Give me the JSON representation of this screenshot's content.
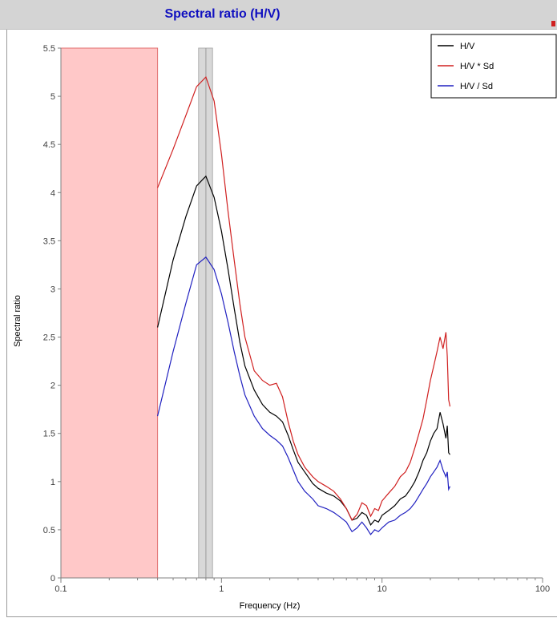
{
  "window": {
    "title": "Spectral ratio (H/V)"
  },
  "chart_data": {
    "type": "line",
    "title": "Spectral ratio (H/V)",
    "xlabel": "Frequency (Hz)",
    "ylabel": "Spectral ratio",
    "xscale": "log",
    "xlim": [
      0.1,
      100
    ],
    "ylim": [
      0,
      5.5
    ],
    "x_ticks": [
      "0.1",
      "1",
      "10",
      "100"
    ],
    "y_ticks": [
      "0",
      "0.5",
      "1",
      "1.5",
      "2",
      "2.5",
      "3",
      "3.5",
      "4",
      "4.5",
      "5",
      "5.5"
    ],
    "legend_position": "top-right",
    "colors": {
      "hv": "#000000",
      "hv_x_sd": "#d02020",
      "hv_div_sd": "#2020c0",
      "excluded_band": "#ffc8c8",
      "peak_band": "#d8d8d8"
    },
    "shaded_regions": [
      {
        "kind": "excluded-frequency-range",
        "x": [
          0.1,
          0.4
        ]
      },
      {
        "kind": "peak-frequency-range",
        "x": [
          0.72,
          0.88
        ]
      }
    ],
    "peak_line_x": 0.8,
    "series": [
      {
        "name": "H/V",
        "color": "#000000",
        "points": [
          [
            0.4,
            2.6
          ],
          [
            0.5,
            3.3
          ],
          [
            0.6,
            3.75
          ],
          [
            0.7,
            4.07
          ],
          [
            0.8,
            4.17
          ],
          [
            0.9,
            3.95
          ],
          [
            1.0,
            3.6
          ],
          [
            1.1,
            3.2
          ],
          [
            1.2,
            2.8
          ],
          [
            1.3,
            2.45
          ],
          [
            1.4,
            2.2
          ],
          [
            1.6,
            1.95
          ],
          [
            1.8,
            1.8
          ],
          [
            2.0,
            1.72
          ],
          [
            2.2,
            1.68
          ],
          [
            2.4,
            1.62
          ],
          [
            2.6,
            1.48
          ],
          [
            2.8,
            1.33
          ],
          [
            3.0,
            1.2
          ],
          [
            3.3,
            1.1
          ],
          [
            3.7,
            0.98
          ],
          [
            4.0,
            0.93
          ],
          [
            4.5,
            0.88
          ],
          [
            5.0,
            0.85
          ],
          [
            5.5,
            0.8
          ],
          [
            6.0,
            0.72
          ],
          [
            6.5,
            0.6
          ],
          [
            7.0,
            0.62
          ],
          [
            7.5,
            0.68
          ],
          [
            8.0,
            0.65
          ],
          [
            8.5,
            0.55
          ],
          [
            9.0,
            0.6
          ],
          [
            9.5,
            0.58
          ],
          [
            10.0,
            0.65
          ],
          [
            11.0,
            0.7
          ],
          [
            12.0,
            0.75
          ],
          [
            13.0,
            0.82
          ],
          [
            14.0,
            0.85
          ],
          [
            15.0,
            0.92
          ],
          [
            16.0,
            1.0
          ],
          [
            17.0,
            1.1
          ],
          [
            18.0,
            1.22
          ],
          [
            19.0,
            1.3
          ],
          [
            20.0,
            1.42
          ],
          [
            21.0,
            1.5
          ],
          [
            22.0,
            1.55
          ],
          [
            23.0,
            1.72
          ],
          [
            24.0,
            1.6
          ],
          [
            25.0,
            1.45
          ],
          [
            25.5,
            1.58
          ],
          [
            26.0,
            1.3
          ],
          [
            26.5,
            1.28
          ]
        ]
      },
      {
        "name": "H/V * Sd",
        "color": "#d02020",
        "points": [
          [
            0.4,
            4.05
          ],
          [
            0.5,
            4.45
          ],
          [
            0.6,
            4.8
          ],
          [
            0.7,
            5.1
          ],
          [
            0.8,
            5.2
          ],
          [
            0.9,
            4.95
          ],
          [
            1.0,
            4.4
          ],
          [
            1.1,
            3.8
          ],
          [
            1.2,
            3.3
          ],
          [
            1.3,
            2.85
          ],
          [
            1.4,
            2.5
          ],
          [
            1.6,
            2.15
          ],
          [
            1.8,
            2.05
          ],
          [
            2.0,
            2.0
          ],
          [
            2.2,
            2.02
          ],
          [
            2.4,
            1.88
          ],
          [
            2.6,
            1.62
          ],
          [
            2.8,
            1.42
          ],
          [
            3.0,
            1.28
          ],
          [
            3.3,
            1.15
          ],
          [
            3.7,
            1.05
          ],
          [
            4.0,
            1.0
          ],
          [
            4.5,
            0.95
          ],
          [
            5.0,
            0.9
          ],
          [
            5.5,
            0.82
          ],
          [
            6.0,
            0.72
          ],
          [
            6.5,
            0.6
          ],
          [
            7.0,
            0.66
          ],
          [
            7.5,
            0.78
          ],
          [
            8.0,
            0.75
          ],
          [
            8.5,
            0.64
          ],
          [
            9.0,
            0.72
          ],
          [
            9.5,
            0.7
          ],
          [
            10.0,
            0.8
          ],
          [
            11.0,
            0.88
          ],
          [
            12.0,
            0.95
          ],
          [
            13.0,
            1.05
          ],
          [
            14.0,
            1.1
          ],
          [
            15.0,
            1.2
          ],
          [
            16.0,
            1.35
          ],
          [
            17.0,
            1.5
          ],
          [
            18.0,
            1.65
          ],
          [
            19.0,
            1.85
          ],
          [
            20.0,
            2.05
          ],
          [
            21.0,
            2.2
          ],
          [
            22.0,
            2.35
          ],
          [
            23.0,
            2.5
          ],
          [
            24.0,
            2.38
          ],
          [
            25.0,
            2.55
          ],
          [
            25.5,
            2.3
          ],
          [
            26.0,
            1.85
          ],
          [
            26.5,
            1.78
          ]
        ]
      },
      {
        "name": "H/V / Sd",
        "color": "#2020c0",
        "points": [
          [
            0.4,
            1.68
          ],
          [
            0.5,
            2.35
          ],
          [
            0.6,
            2.85
          ],
          [
            0.7,
            3.25
          ],
          [
            0.8,
            3.33
          ],
          [
            0.9,
            3.2
          ],
          [
            1.0,
            2.95
          ],
          [
            1.1,
            2.65
          ],
          [
            1.2,
            2.35
          ],
          [
            1.3,
            2.1
          ],
          [
            1.4,
            1.9
          ],
          [
            1.6,
            1.68
          ],
          [
            1.8,
            1.55
          ],
          [
            2.0,
            1.48
          ],
          [
            2.2,
            1.43
          ],
          [
            2.4,
            1.37
          ],
          [
            2.6,
            1.25
          ],
          [
            2.8,
            1.12
          ],
          [
            3.0,
            1.0
          ],
          [
            3.3,
            0.9
          ],
          [
            3.7,
            0.82
          ],
          [
            4.0,
            0.75
          ],
          [
            4.5,
            0.72
          ],
          [
            5.0,
            0.68
          ],
          [
            5.5,
            0.63
          ],
          [
            6.0,
            0.58
          ],
          [
            6.5,
            0.48
          ],
          [
            7.0,
            0.52
          ],
          [
            7.5,
            0.58
          ],
          [
            8.0,
            0.52
          ],
          [
            8.5,
            0.45
          ],
          [
            9.0,
            0.5
          ],
          [
            9.5,
            0.48
          ],
          [
            10.0,
            0.52
          ],
          [
            11.0,
            0.58
          ],
          [
            12.0,
            0.6
          ],
          [
            13.0,
            0.65
          ],
          [
            14.0,
            0.68
          ],
          [
            15.0,
            0.72
          ],
          [
            16.0,
            0.78
          ],
          [
            17.0,
            0.85
          ],
          [
            18.0,
            0.92
          ],
          [
            19.0,
            0.98
          ],
          [
            20.0,
            1.05
          ],
          [
            21.0,
            1.1
          ],
          [
            22.0,
            1.15
          ],
          [
            23.0,
            1.22
          ],
          [
            24.0,
            1.12
          ],
          [
            25.0,
            1.05
          ],
          [
            25.5,
            1.1
          ],
          [
            26.0,
            0.92
          ],
          [
            26.5,
            0.95
          ]
        ]
      }
    ]
  }
}
